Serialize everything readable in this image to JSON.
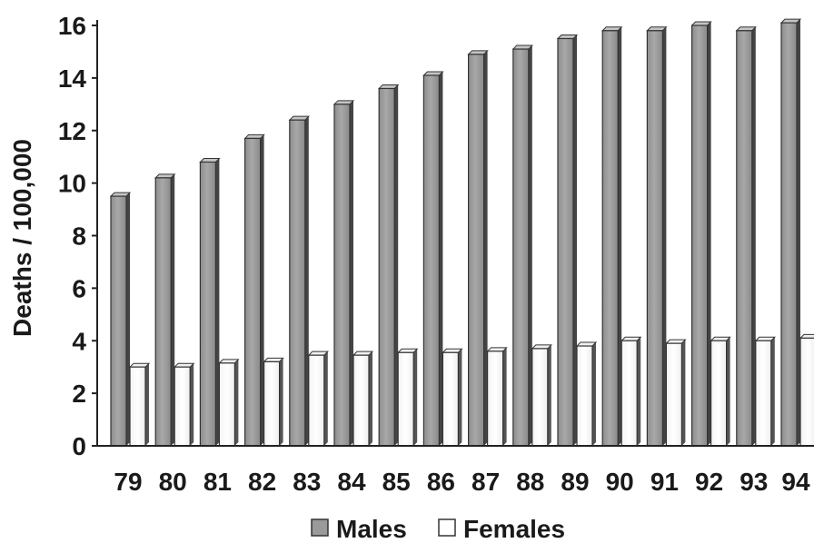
{
  "chart_data": {
    "type": "bar",
    "categories": [
      "79",
      "80",
      "81",
      "82",
      "83",
      "84",
      "85",
      "86",
      "87",
      "88",
      "89",
      "90",
      "91",
      "92",
      "93",
      "94"
    ],
    "series": [
      {
        "name": "Males",
        "color": "#9a9a9a",
        "values": [
          9.5,
          10.2,
          10.8,
          11.7,
          12.4,
          13.0,
          13.6,
          14.1,
          14.9,
          15.1,
          15.5,
          15.8,
          15.8,
          16.0,
          15.8,
          16.1
        ]
      },
      {
        "name": "Females",
        "color": "#ffffff",
        "values": [
          3.0,
          3.0,
          3.15,
          3.2,
          3.45,
          3.45,
          3.55,
          3.55,
          3.6,
          3.7,
          3.8,
          4.0,
          3.9,
          4.0,
          4.0,
          4.1
        ]
      }
    ],
    "ylabel": "Deaths / 100,000",
    "xlabel": "",
    "ylim": [
      0,
      16
    ],
    "yticks": [
      0,
      2,
      4,
      6,
      8,
      10,
      12,
      14,
      16
    ],
    "grid": false,
    "legend_position": "bottom-center"
  }
}
